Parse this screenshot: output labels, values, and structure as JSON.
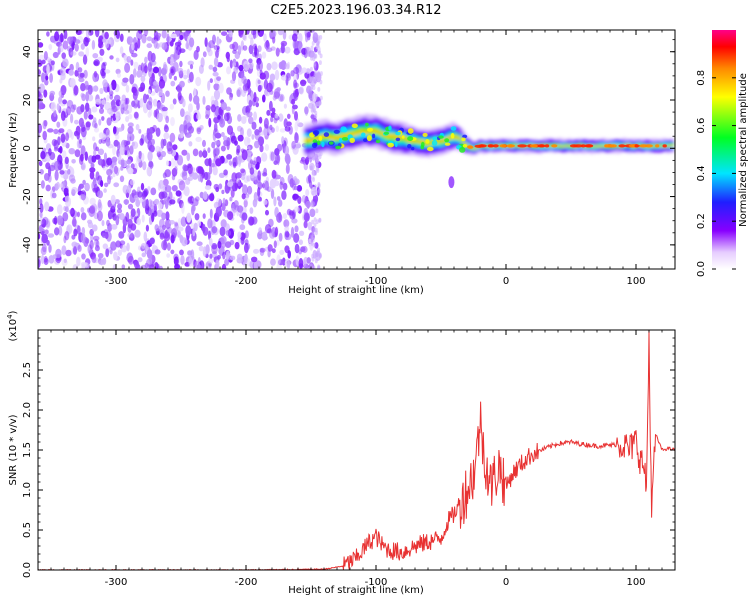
{
  "title": "C2E5.2023.196.03.34.R12",
  "chart_data": [
    {
      "type": "heatmap",
      "xlabel": "Height of straight line (km)",
      "ylabel": "Frequency (Hz)",
      "xlim": [
        -360,
        130
      ],
      "ylim": [
        -50,
        49
      ],
      "x_ticks": [
        -300,
        -200,
        -100,
        0,
        100
      ],
      "x_tick_labels": [
        "-300",
        "-200",
        "-100",
        "0",
        "100"
      ],
      "y_ticks": [
        -40,
        -20,
        0,
        20,
        40
      ],
      "y_tick_labels": [
        "-40",
        "-20",
        "0",
        "20",
        "40"
      ],
      "noise_region_x": [
        -360,
        -150
      ],
      "ridge": {
        "x": [
          -155,
          -140,
          -130,
          -120,
          -110,
          -100,
          -90,
          -80,
          -70,
          -60,
          -50,
          -40,
          -35,
          -30,
          -25,
          -20,
          -10,
          0,
          20,
          50,
          80,
          110,
          130
        ],
        "freq": [
          3,
          5,
          4,
          6,
          7,
          7,
          5,
          4,
          3,
          2,
          3,
          5,
          4,
          1,
          0,
          1,
          1,
          1,
          1,
          1,
          1,
          1,
          1
        ],
        "width": [
          7,
          7,
          7,
          7,
          7,
          7,
          7,
          7,
          6,
          6,
          6,
          6,
          5,
          4,
          3,
          3,
          3,
          3,
          3,
          3,
          3,
          3,
          3
        ]
      },
      "colorbar": {
        "label": "Normalized spectral amplitude",
        "ticks": [
          0.0,
          0.2,
          0.4,
          0.6,
          0.8
        ],
        "tick_labels": [
          "0.0",
          "0.2",
          "0.4",
          "0.6",
          "0.8"
        ],
        "range": [
          0,
          1
        ]
      }
    },
    {
      "type": "line",
      "xlabel": "Height of straight line (km)",
      "ylabel": "SNR (10 * v/v)",
      "multiplier_label": "(x10",
      "multiplier_exp": "4",
      "xlim": [
        -360,
        130
      ],
      "ylim": [
        0,
        3.0
      ],
      "x_ticks": [
        -300,
        -200,
        -100,
        0,
        100
      ],
      "x_tick_labels": [
        "-300",
        "-200",
        "-100",
        "0",
        "100"
      ],
      "y_ticks": [
        0.0,
        0.5,
        1.0,
        1.5,
        2.0,
        2.5
      ],
      "y_tick_labels": [
        "0.0",
        "0.5",
        "1.0",
        "1.5",
        "2.0",
        "2.5"
      ],
      "color": "#e83232",
      "series": [
        {
          "x": [
            -360,
            -300,
            -200,
            -140,
            -125,
            -115,
            -110,
            -105,
            -100,
            -95,
            -90,
            -80,
            -70,
            -60,
            -50,
            -45,
            -40,
            -35,
            -30,
            -25,
            -22,
            -20,
            -18,
            -15,
            -12,
            -10,
            -8,
            -5,
            -2,
            0,
            5,
            10,
            20,
            30,
            40,
            50,
            60,
            70,
            80,
            90,
            95,
            100,
            103,
            106,
            108,
            110,
            112,
            115,
            120,
            125,
            130
          ],
          "y": [
            0.0,
            0.0,
            0.0,
            0.01,
            0.05,
            0.15,
            0.25,
            0.35,
            0.42,
            0.3,
            0.25,
            0.22,
            0.3,
            0.35,
            0.4,
            0.6,
            0.7,
            0.85,
            1.0,
            1.2,
            1.5,
            1.9,
            1.6,
            1.3,
            1.05,
            1.1,
            1.2,
            1.3,
            1.15,
            1.05,
            1.2,
            1.3,
            1.45,
            1.52,
            1.58,
            1.6,
            1.57,
            1.55,
            1.56,
            1.58,
            1.5,
            1.62,
            1.4,
            1.3,
            1.0,
            2.9,
            0.7,
            1.7,
            1.5,
            1.52,
            1.5
          ]
        }
      ]
    }
  ]
}
